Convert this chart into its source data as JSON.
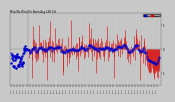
{
  "bg_color": "#c8c8c8",
  "plot_bg_color": "#c8c8c8",
  "red_color": "#dd0000",
  "blue_color": "#0000cc",
  "grid_color": "#888888",
  "ylim": [
    -1.5,
    1.5
  ],
  "n_points": 288,
  "seed": 42,
  "legend_red": "Norm",
  "legend_blue": "Avg",
  "yticks": [
    -1,
    0,
    1
  ],
  "yticklabels": [
    "-1",
    "0",
    "1"
  ]
}
